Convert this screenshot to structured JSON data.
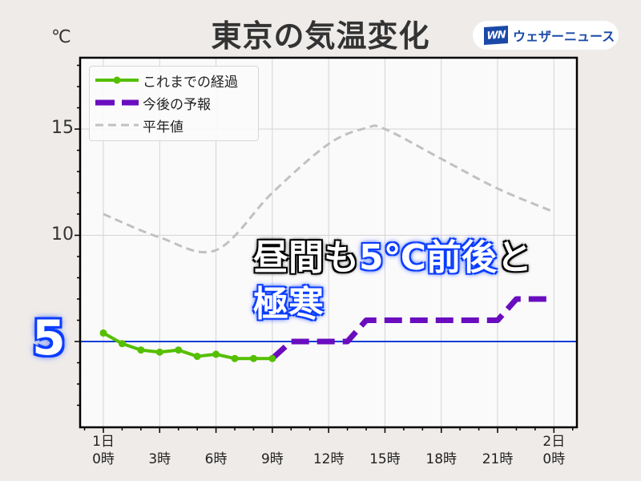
{
  "header": {
    "title": "東京の気温変化",
    "unit": "℃",
    "logo_mark": "WN",
    "logo_text": "ウェザーニュース"
  },
  "legend": [
    {
      "label": "これまでの経過",
      "color": "#55bf00",
      "style": "solid-marker"
    },
    {
      "label": "今後の予報",
      "color": "#6a0dbf",
      "style": "thick-dashed"
    },
    {
      "label": "平年値",
      "color": "#c2c0c2",
      "style": "dashed"
    }
  ],
  "annotation": {
    "line1_white_a": "昼間も",
    "line1_blue": "5℃前後",
    "line1_white_b": "と",
    "line2_blue": "極寒"
  },
  "highlight_value": "5",
  "colors": {
    "background": "#eeebe9",
    "plot_bg": "#fbfafb",
    "grid": "#d5d3d5",
    "reference_line": "#0a3cd6",
    "observed": "#55bf00",
    "forecast": "#6a0dbf",
    "normal": "#c2c0c2"
  },
  "chart_data": {
    "type": "line",
    "title": "東京の気温変化",
    "xlabel": "",
    "ylabel": "℃",
    "x_unit": "hour",
    "xlim": [
      -1.2,
      25.2
    ],
    "ylim": [
      1.0,
      18.4
    ],
    "grid": true,
    "legend_position": "upper left",
    "y_ticks": [
      5,
      10,
      15
    ],
    "x_ticks": [
      {
        "hour": 0,
        "label": "1日\n0時"
      },
      {
        "hour": 3,
        "label": "3時"
      },
      {
        "hour": 6,
        "label": "6時"
      },
      {
        "hour": 9,
        "label": "9時"
      },
      {
        "hour": 12,
        "label": "12時"
      },
      {
        "hour": 15,
        "label": "15時"
      },
      {
        "hour": 18,
        "label": "18時"
      },
      {
        "hour": 21,
        "label": "21時"
      },
      {
        "hour": 24,
        "label": "2日\n0時"
      }
    ],
    "reference_line": {
      "y": 5,
      "label": "5"
    },
    "series": [
      {
        "name": "これまでの経過",
        "x": [
          0,
          1,
          2,
          3,
          4,
          5,
          6,
          7,
          8,
          9
        ],
        "values": [
          5.4,
          4.9,
          4.6,
          4.5,
          4.6,
          4.3,
          4.4,
          4.2,
          4.2,
          4.2
        ]
      },
      {
        "name": "今後の予報",
        "x": [
          9,
          10,
          11,
          12,
          13,
          14,
          15,
          16,
          17,
          18,
          19,
          20,
          21,
          22,
          23,
          24
        ],
        "values": [
          4.2,
          5.0,
          5.0,
          5.0,
          5.0,
          6.0,
          6.0,
          6.0,
          6.0,
          6.0,
          6.0,
          6.0,
          6.0,
          7.0,
          7.0,
          7.0
        ]
      },
      {
        "name": "平年値",
        "x": [
          0,
          3,
          6,
          9,
          12,
          14,
          15,
          18,
          21,
          24
        ],
        "values": [
          11.0,
          9.9,
          9.3,
          12.0,
          14.3,
          15.05,
          15.0,
          13.6,
          12.2,
          11.1
        ]
      }
    ],
    "annotations": [
      "昼間も5℃前後と極寒"
    ]
  }
}
